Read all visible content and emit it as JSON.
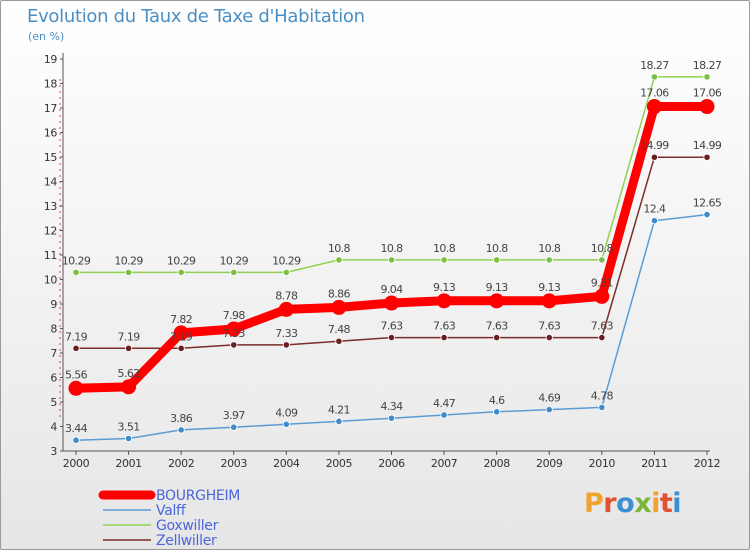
{
  "header": {
    "title": "Evolution du Taux de Taxe d'Habitation",
    "subtitle": "(en %)"
  },
  "logo": {
    "text": "Proxiti",
    "colors": [
      "#f0a32e",
      "#e05230",
      "#3c8fd0",
      "#7ab53c"
    ]
  },
  "chart_data": {
    "type": "line",
    "title": "Evolution du Taux de Taxe d'Habitation",
    "subtitle": "(en %)",
    "xlabel": "",
    "ylabel": "",
    "ylim": [
      3,
      19
    ],
    "yticks": [
      3,
      4,
      5,
      6,
      7,
      8,
      9,
      10,
      11,
      12,
      13,
      14,
      15,
      16,
      17,
      18,
      19
    ],
    "grid": false,
    "legend": "bottom-left",
    "x": [
      "2000",
      "2001",
      "2002",
      "2003",
      "2004",
      "2005",
      "2006",
      "2007",
      "2008",
      "2009",
      "2010",
      "2011",
      "2012"
    ],
    "series": [
      {
        "name": "BOURGHEIM",
        "color": "#ff0000",
        "bold": true,
        "values": [
          5.56,
          5.62,
          7.82,
          7.98,
          8.78,
          8.86,
          9.04,
          9.13,
          9.13,
          9.13,
          9.31,
          17.06,
          17.06
        ],
        "labels": [
          "5.56",
          "5.62",
          "7.82",
          "7.98",
          "8.78",
          "8.86",
          "9.04",
          "9.13",
          "9.13",
          "9.13",
          "9.31",
          "17.06",
          "17.06"
        ]
      },
      {
        "name": "Valff",
        "color": "#5b9bd5",
        "point_color": "#3f8ac9",
        "values": [
          3.44,
          3.51,
          3.86,
          3.97,
          4.09,
          4.21,
          4.34,
          4.47,
          4.6,
          4.69,
          4.78,
          12.4,
          12.65
        ],
        "labels": [
          "3.44",
          "3.51",
          "3.86",
          "3.97",
          "4.09",
          "4.21",
          "4.34",
          "4.47",
          "4.6",
          "4.69",
          "4.78",
          "12.4",
          "12.65"
        ]
      },
      {
        "name": "Goxwiller",
        "color": "#92d050",
        "point_color": "#7ac143",
        "values": [
          10.29,
          10.29,
          10.29,
          10.29,
          10.29,
          10.8,
          10.8,
          10.8,
          10.8,
          10.8,
          10.8,
          18.27,
          18.27
        ],
        "labels": [
          "10.29",
          "10.29",
          "10.29",
          "10.29",
          "10.29",
          "10.8",
          "10.8",
          "10.8",
          "10.8",
          "10.8",
          "10.8",
          "18.27",
          "18.27"
        ]
      },
      {
        "name": "Zellwiller",
        "color": "#7b2c2c",
        "point_color": "#6b1f1f",
        "values": [
          7.19,
          7.19,
          7.19,
          7.33,
          7.33,
          7.48,
          7.63,
          7.63,
          7.63,
          7.63,
          7.63,
          14.99,
          14.99
        ],
        "labels": [
          "7.19",
          "7.19",
          "7.19",
          "7.33",
          "7.33",
          "7.48",
          "7.63",
          "7.63",
          "7.63",
          "7.63",
          "7.63",
          "14.99",
          "14.99"
        ]
      }
    ]
  }
}
